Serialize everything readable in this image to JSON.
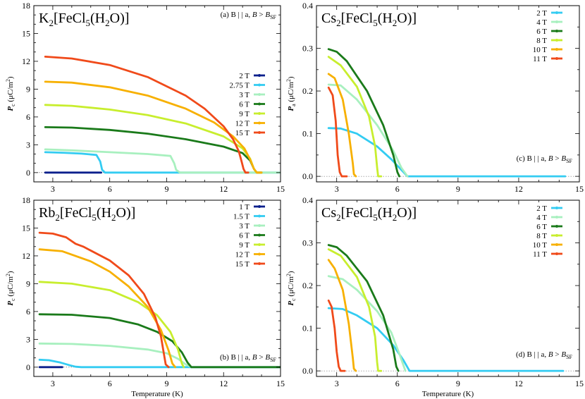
{
  "chart_data": [
    {
      "type": "line",
      "title": "K2[FeCl5(H2O)]",
      "title_parts": {
        "pre": "K",
        "sub1": "2",
        "mid": "[FeCl",
        "sub2": "5",
        "mid2": "(H",
        "sub3": "2",
        "post": "O)]"
      },
      "annotation": "(a) B || a, B > B_SF",
      "annotation_parts": {
        "text": "(a) B | | a,  ",
        "var": "B",
        "gt": " > ",
        "var2": "B",
        "sub": "SF"
      },
      "ylabel_parts": {
        "var": "P",
        "sub": "c",
        "unit": " (μC/m",
        "sup": "2",
        "close": ")"
      },
      "xlabel": "",
      "xlim": [
        2,
        15
      ],
      "ylim": [
        -1,
        18
      ],
      "xticks": [
        3,
        6,
        9,
        12,
        15
      ],
      "yticks": [
        0,
        3,
        6,
        9,
        12,
        15,
        18
      ],
      "legend_position": "right-middle",
      "series": [
        {
          "name": "2 T",
          "color": "#0a1f8c",
          "x": [
            2.6,
            5.55
          ],
          "y": [
            0,
            0
          ]
        },
        {
          "name": "2.75 T",
          "color": "#33ccf2",
          "x": [
            2.6,
            3.5,
            4.5,
            5.3,
            5.5,
            5.6,
            5.75,
            15
          ],
          "y": [
            2.2,
            2.15,
            2.05,
            1.9,
            1.2,
            0.3,
            0,
            0
          ]
        },
        {
          "name": "3 T",
          "color": "#a8f0bf",
          "x": [
            2.6,
            4,
            6,
            8,
            9.2,
            9.4,
            9.5,
            9.7,
            15
          ],
          "y": [
            2.5,
            2.4,
            2.2,
            2.0,
            1.8,
            1.0,
            0.3,
            0,
            0
          ]
        },
        {
          "name": "6 T",
          "color": "#1a7a1a",
          "x": [
            2.6,
            4,
            6,
            8,
            10,
            12,
            13,
            13.4,
            13.6,
            13.75,
            14
          ],
          "y": [
            4.9,
            4.85,
            4.6,
            4.2,
            3.6,
            2.8,
            2.1,
            1.3,
            0.4,
            0,
            0
          ]
        },
        {
          "name": "9 T",
          "color": "#c8ee2e",
          "x": [
            2.6,
            4,
            6,
            8,
            10,
            12,
            13,
            13.4,
            13.6,
            13.75,
            14
          ],
          "y": [
            7.3,
            7.2,
            6.8,
            6.2,
            5.3,
            3.9,
            2.6,
            1.5,
            0.4,
            0,
            0
          ]
        },
        {
          "name": "12 T",
          "color": "#f7b000",
          "x": [
            2.6,
            4,
            6,
            8,
            10,
            11.5,
            12.5,
            13.1,
            13.4,
            13.6,
            13.75,
            14
          ],
          "y": [
            9.8,
            9.7,
            9.2,
            8.3,
            6.9,
            5.4,
            3.9,
            2.6,
            1.4,
            0.4,
            0,
            0
          ]
        },
        {
          "name": "15 T",
          "color": "#f04a1a",
          "x": [
            2.6,
            4,
            6,
            8,
            10,
            11,
            12,
            12.5,
            12.8,
            12.95,
            13.05,
            13.15,
            13.3
          ],
          "y": [
            12.5,
            12.3,
            11.6,
            10.3,
            8.3,
            6.9,
            5.0,
            3.6,
            2.3,
            1.2,
            0.4,
            0,
            0
          ]
        }
      ]
    },
    {
      "type": "line",
      "title": "Cs2[FeCl5(H2O)]",
      "title_parts": {
        "pre": "Cs",
        "sub1": "2",
        "mid": "[FeCl",
        "sub2": "5",
        "mid2": "(H",
        "sub3": "2",
        "post": "O)]"
      },
      "annotation": "(c) B || a, B > B_SF",
      "annotation_parts": {
        "text": "(c) B | | a,  ",
        "var": "B",
        "gt": " > ",
        "var2": "B",
        "sub": "SF"
      },
      "ylabel_parts": {
        "var": "P",
        "sub": "a",
        "unit": " (μC/m",
        "sup": "2",
        "close": ")"
      },
      "xlabel": "",
      "xlim": [
        2,
        15
      ],
      "ylim": [
        -0.013,
        0.4
      ],
      "xticks": [
        3,
        6,
        9,
        12,
        15
      ],
      "yticks": [
        0.0,
        0.1,
        0.2,
        0.3,
        0.4
      ],
      "yticks_labels": [
        "0.0",
        "0.1",
        "0.2",
        "0.3",
        "0.4"
      ],
      "legend_position": "top-right",
      "series": [
        {
          "name": "2 T",
          "color": "#33ccf2",
          "x": [
            2.6,
            3.2,
            4,
            5,
            5.7,
            6.2,
            6.5,
            8,
            10,
            12,
            14.3
          ],
          "y": [
            0.113,
            0.112,
            0.1,
            0.07,
            0.04,
            0.015,
            0,
            0,
            0,
            0,
            0
          ]
        },
        {
          "name": "4 T",
          "color": "#a8f0bf",
          "x": [
            2.6,
            3.2,
            4,
            5,
            5.8,
            6.2,
            6.5
          ],
          "y": [
            0.215,
            0.213,
            0.18,
            0.12,
            0.06,
            0.02,
            0
          ]
        },
        {
          "name": "6 T",
          "color": "#1a7a1a",
          "x": [
            2.6,
            3.0,
            3.5,
            4.5,
            5.3,
            5.8,
            6.0,
            6.1
          ],
          "y": [
            0.298,
            0.292,
            0.27,
            0.2,
            0.12,
            0.05,
            0.01,
            0
          ]
        },
        {
          "name": "8 T",
          "color": "#c8ee2e",
          "x": [
            2.6,
            3.2,
            4,
            4.6,
            4.9,
            5.0,
            5.05,
            5.2
          ],
          "y": [
            0.28,
            0.26,
            0.21,
            0.14,
            0.07,
            0.02,
            0,
            0
          ]
        },
        {
          "name": "10 T",
          "color": "#f7b000",
          "x": [
            2.6,
            2.9,
            3.3,
            3.6,
            3.8,
            3.85,
            3.95
          ],
          "y": [
            0.24,
            0.23,
            0.18,
            0.1,
            0.03,
            0.005,
            0
          ]
        },
        {
          "name": "11 T",
          "color": "#f04a1a",
          "x": [
            2.6,
            2.8,
            2.95,
            3.05,
            3.15,
            3.25,
            3.5
          ],
          "y": [
            0.208,
            0.19,
            0.13,
            0.05,
            0.01,
            0,
            0
          ]
        }
      ]
    },
    {
      "type": "line",
      "title": "Rb2[FeCl5(H2O)]",
      "title_parts": {
        "pre": "Rb",
        "sub1": "2",
        "mid": "[FeCl",
        "sub2": "5",
        "mid2": "(H",
        "sub3": "2",
        "post": "O)]"
      },
      "annotation": "(b) B || a, B > B_SF",
      "annotation_parts": {
        "text": "(b) B | | a,  ",
        "var": "B",
        "gt": " > ",
        "var2": "B",
        "sub": "SF"
      },
      "ylabel_parts": {
        "var": "P",
        "sub": "c",
        "unit": " (μC/m",
        "sup": "2",
        "close": ")"
      },
      "xlabel": "Temperature (K)",
      "xlim": [
        2,
        15
      ],
      "ylim": [
        -1,
        18
      ],
      "xticks": [
        3,
        6,
        9,
        12,
        15
      ],
      "yticks": [
        0,
        3,
        6,
        9,
        12,
        15,
        18
      ],
      "legend_position": "top-right",
      "series": [
        {
          "name": "1 T",
          "color": "#0a1f8c",
          "x": [
            2.3,
            3.5
          ],
          "y": [
            0,
            0
          ]
        },
        {
          "name": "1.5 T",
          "color": "#33ccf2",
          "x": [
            2.3,
            2.8,
            3.4,
            3.9,
            4.2,
            4.5,
            6,
            9,
            12,
            15
          ],
          "y": [
            0.8,
            0.75,
            0.5,
            0.2,
            0.05,
            0,
            0,
            0,
            0,
            0
          ]
        },
        {
          "name": "3 T",
          "color": "#a8f0bf",
          "x": [
            2.3,
            4,
            6,
            8,
            9,
            9.6,
            10.0,
            10.3
          ],
          "y": [
            2.55,
            2.5,
            2.3,
            1.9,
            1.5,
            0.9,
            0.3,
            0
          ]
        },
        {
          "name": "6 T",
          "color": "#1a7a1a",
          "x": [
            2.3,
            4,
            6,
            7.5,
            8.5,
            9.3,
            9.8,
            10.1,
            10.3,
            15
          ],
          "y": [
            5.7,
            5.65,
            5.3,
            4.6,
            3.8,
            2.8,
            1.6,
            0.5,
            0,
            0
          ]
        },
        {
          "name": "9 T",
          "color": "#c8ee2e",
          "x": [
            2.3,
            4,
            6,
            7.5,
            8.5,
            9.2,
            9.6,
            9.8,
            9.9
          ],
          "y": [
            9.2,
            9.0,
            8.3,
            7.0,
            5.6,
            3.8,
            1.9,
            0.4,
            0
          ]
        },
        {
          "name": "12 T",
          "color": "#f7b000",
          "x": [
            2.3,
            3.5,
            5,
            6,
            7,
            8,
            8.7,
            9.1,
            9.3,
            9.45
          ],
          "y": [
            12.7,
            12.5,
            11.4,
            10.3,
            8.7,
            6.5,
            4.0,
            1.8,
            0.4,
            0
          ]
        },
        {
          "name": "15 T",
          "color": "#f04a1a",
          "x": [
            2.3,
            3.0,
            3.7,
            4.2,
            4.6,
            6,
            7,
            7.8,
            8.4,
            8.7,
            8.85,
            8.95,
            9.1
          ],
          "y": [
            14.5,
            14.4,
            14.0,
            13.3,
            13.0,
            11.5,
            9.9,
            7.9,
            5.4,
            3.3,
            1.5,
            0.3,
            0
          ]
        }
      ]
    },
    {
      "type": "line",
      "title": "Cs2[FeCl5(H2O)]",
      "title_parts": {
        "pre": "Cs",
        "sub1": "2",
        "mid": "[FeCl",
        "sub2": "5",
        "mid2": "(H",
        "sub3": "2",
        "post": "O)]"
      },
      "annotation": "(d) B || a, B > B_SF",
      "annotation_parts": {
        "text": "(d) B | | a,  ",
        "var": "B",
        "gt": " > ",
        "var2": "B",
        "sub": "SF"
      },
      "ylabel_parts": {
        "var": "P",
        "sub": "c",
        "unit": " (μC/m",
        "sup": "2",
        "close": ")"
      },
      "xlabel": "Temperature (K)",
      "xlim": [
        2,
        15
      ],
      "ylim": [
        -0.013,
        0.4
      ],
      "xticks": [
        3,
        6,
        9,
        12,
        15
      ],
      "yticks": [
        0.0,
        0.1,
        0.2,
        0.3,
        0.4
      ],
      "yticks_labels": [
        "0.0",
        "0.1",
        "0.2",
        "0.3",
        "0.4"
      ],
      "legend_position": "top-right",
      "series": [
        {
          "name": "2 T",
          "color": "#33ccf2",
          "x": [
            2.6,
            3.3,
            4,
            5,
            5.8,
            6.3,
            6.6,
            8,
            10,
            12,
            14.2
          ],
          "y": [
            0.147,
            0.145,
            0.13,
            0.1,
            0.06,
            0.025,
            0,
            0,
            0,
            0,
            0
          ]
        },
        {
          "name": "4 T",
          "color": "#a8f0bf",
          "x": [
            2.6,
            3.3,
            4,
            5,
            5.7,
            6.1,
            6.4
          ],
          "y": [
            0.222,
            0.215,
            0.19,
            0.14,
            0.09,
            0.04,
            0
          ]
        },
        {
          "name": "6 T",
          "color": "#1a7a1a",
          "x": [
            2.6,
            3.0,
            3.5,
            4.5,
            5.3,
            5.8,
            5.95,
            6.05
          ],
          "y": [
            0.295,
            0.29,
            0.27,
            0.21,
            0.13,
            0.05,
            0.01,
            0
          ]
        },
        {
          "name": "8 T",
          "color": "#c8ee2e",
          "x": [
            2.6,
            3.2,
            4,
            4.6,
            4.9,
            5.0,
            5.05,
            5.2
          ],
          "y": [
            0.285,
            0.27,
            0.22,
            0.15,
            0.08,
            0.02,
            0,
            0
          ]
        },
        {
          "name": "10 T",
          "color": "#f7b000",
          "x": [
            2.6,
            2.9,
            3.3,
            3.6,
            3.8,
            3.85,
            3.95
          ],
          "y": [
            0.26,
            0.24,
            0.19,
            0.11,
            0.03,
            0.005,
            0
          ]
        },
        {
          "name": "11 T",
          "color": "#f04a1a",
          "x": [
            2.6,
            2.75,
            2.9,
            3.0,
            3.1,
            3.2,
            3.4
          ],
          "y": [
            0.165,
            0.15,
            0.1,
            0.045,
            0.01,
            0,
            0
          ]
        }
      ]
    }
  ]
}
